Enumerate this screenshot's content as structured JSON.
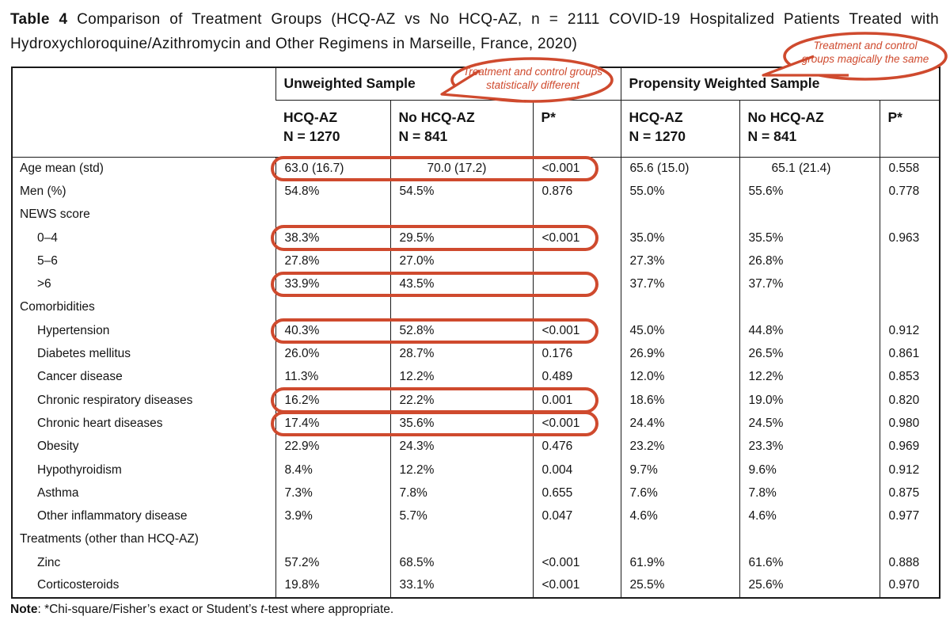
{
  "title": {
    "prefix": "Table 4",
    "text": "Comparison of Treatment Groups (HCQ-AZ vs No HCQ-AZ, n = 2111 COVID-19 Hospitalized Patients Treated with Hydroxychloroquine/Azithromycin and Other Regimens in Marseille, France, 2020)"
  },
  "annotations": {
    "color": "#cf4a2e",
    "bubble_left": {
      "line1": "Treatment and control groups",
      "line2": "statistically different"
    },
    "bubble_right": {
      "line1": "Treatment and control",
      "line2": "groups magically the same"
    }
  },
  "table": {
    "group_headers": [
      {
        "label": "Unweighted Sample"
      },
      {
        "label": "Propensity Weighted Sample"
      }
    ],
    "column_headers": [
      {
        "line1": "HCQ-AZ",
        "line2": "N = 1270"
      },
      {
        "line1": "No HCQ-AZ",
        "line2": "N = 841"
      },
      {
        "line1": "P*"
      },
      {
        "line1": "HCQ-AZ",
        "line2": "N = 1270"
      },
      {
        "line1": "No HCQ-AZ",
        "line2": "N = 841"
      },
      {
        "line1": "P*"
      }
    ],
    "rows": [
      {
        "label": "Age mean (std)",
        "indent": false,
        "circled": true,
        "values": [
          "63.0 (16.7)",
          "70.0 (17.2)",
          "<0.001",
          "65.6 (15.0)",
          "65.1 (21.4)",
          "0.558"
        ]
      },
      {
        "label": "Men (%)",
        "indent": false,
        "circled": false,
        "values": [
          "54.8%",
          "54.5%",
          "0.876",
          "55.0%",
          "55.6%",
          "0.778"
        ]
      },
      {
        "label": "NEWS score",
        "indent": false,
        "section": true,
        "values": [
          "",
          "",
          "",
          "",
          "",
          ""
        ]
      },
      {
        "label": "0–4",
        "indent": true,
        "circled": true,
        "values": [
          "38.3%",
          "29.5%",
          "<0.001",
          "35.0%",
          "35.5%",
          "0.963"
        ]
      },
      {
        "label": "5–6",
        "indent": true,
        "circled": false,
        "values": [
          "27.8%",
          "27.0%",
          "",
          "27.3%",
          "26.8%",
          ""
        ]
      },
      {
        "label": ">6",
        "indent": true,
        "circled": true,
        "values": [
          "33.9%",
          "43.5%",
          "",
          "37.7%",
          "37.7%",
          ""
        ]
      },
      {
        "label": "Comorbidities",
        "indent": false,
        "section": true,
        "values": [
          "",
          "",
          "",
          "",
          "",
          ""
        ]
      },
      {
        "label": "Hypertension",
        "indent": true,
        "circled": true,
        "values": [
          "40.3%",
          "52.8%",
          "<0.001",
          "45.0%",
          "44.8%",
          "0.912"
        ]
      },
      {
        "label": "Diabetes mellitus",
        "indent": true,
        "circled": false,
        "values": [
          "26.0%",
          "28.7%",
          "0.176",
          "26.9%",
          "26.5%",
          "0.861"
        ]
      },
      {
        "label": "Cancer disease",
        "indent": true,
        "circled": false,
        "values": [
          "11.3%",
          "12.2%",
          "0.489",
          "12.0%",
          "12.2%",
          "0.853"
        ]
      },
      {
        "label": "Chronic respiratory diseases",
        "indent": true,
        "circled": true,
        "values": [
          "16.2%",
          "22.2%",
          "0.001",
          "18.6%",
          "19.0%",
          "0.820"
        ]
      },
      {
        "label": "Chronic heart diseases",
        "indent": true,
        "circled": true,
        "values": [
          "17.4%",
          "35.6%",
          "<0.001",
          "24.4%",
          "24.5%",
          "0.980"
        ]
      },
      {
        "label": "Obesity",
        "indent": true,
        "circled": false,
        "values": [
          "22.9%",
          "24.3%",
          "0.476",
          "23.2%",
          "23.3%",
          "0.969"
        ]
      },
      {
        "label": "Hypothyroidism",
        "indent": true,
        "circled": false,
        "values": [
          "8.4%",
          "12.2%",
          "0.004",
          "9.7%",
          "9.6%",
          "0.912"
        ]
      },
      {
        "label": "Asthma",
        "indent": true,
        "circled": false,
        "values": [
          "7.3%",
          "7.8%",
          "0.655",
          "7.6%",
          "7.8%",
          "0.875"
        ]
      },
      {
        "label": "Other inflammatory disease",
        "indent": true,
        "circled": false,
        "values": [
          "3.9%",
          "5.7%",
          "0.047",
          "4.6%",
          "4.6%",
          "0.977"
        ]
      },
      {
        "label": "Treatments (other than HCQ-AZ)",
        "indent": false,
        "section": true,
        "values": [
          "",
          "",
          "",
          "",
          "",
          ""
        ]
      },
      {
        "label": "Zinc",
        "indent": true,
        "circled": false,
        "values": [
          "57.2%",
          "68.5%",
          "<0.001",
          "61.9%",
          "61.6%",
          "0.888"
        ]
      },
      {
        "label": "Corticosteroids",
        "indent": true,
        "circled": false,
        "values": [
          "19.8%",
          "33.1%",
          "<0.001",
          "25.5%",
          "25.6%",
          "0.970"
        ]
      }
    ]
  },
  "note": {
    "bold": "Note",
    "before_t": ": *Chi-square/Fisher’s exact or Student’s ",
    "t": "t",
    "after_t": "-test where appropriate."
  }
}
